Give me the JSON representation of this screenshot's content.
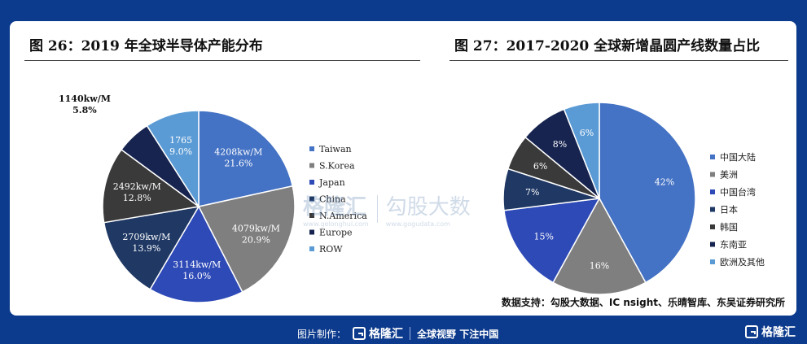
{
  "left_panel": {
    "title": "图 26：2019 年全球半导体产能分布"
  },
  "right_panel": {
    "title": "图 27：2017-2020 全球新增晶圆产线数量占比"
  },
  "source_note": "数据支持：勾股大数据、IC nsight、乐晴智库、东吴证券研究所",
  "watermark": {
    "brand": "格隆汇",
    "brand_sub": "www.gelonghui.com",
    "brand2": "勾股大数",
    "brand2_sub": "www.gogudata.com"
  },
  "footer": {
    "made_by": "图片制作：",
    "brand": "格隆汇",
    "slogan": "全球视野 下注中国",
    "right_brand": "格隆汇"
  },
  "chart_data": [
    {
      "type": "pie",
      "title": "图 26：2019 年全球半导体产能分布",
      "slices": [
        {
          "name": "Taiwan",
          "value": 4208,
          "label": "4208kw/M",
          "pct": "21.6%",
          "color": "#4472c4"
        },
        {
          "name": "S.Korea",
          "value": 4079,
          "label": "4079kw/M",
          "pct": "20.9%",
          "color": "#7f7f7f"
        },
        {
          "name": "Japan",
          "value": 3114,
          "label": "3114kw/M",
          "pct": "16.0%",
          "color": "#2e4ab6"
        },
        {
          "name": "China",
          "value": 2709,
          "label": "2709kw/M",
          "pct": "13.9%",
          "color": "#1f3864"
        },
        {
          "name": "N.America",
          "value": 2492,
          "label": "2492kw/M",
          "pct": "12.8%",
          "color": "#3a3a3a"
        },
        {
          "name": "Europe",
          "value": 1140,
          "label": "1140kw/M",
          "pct": "5.8%",
          "color": "#16244f"
        },
        {
          "name": "ROW",
          "value": 1765,
          "label": "1765",
          "pct": "9.0%",
          "color": "#5b9bd5"
        }
      ],
      "legend_position": "right"
    },
    {
      "type": "pie",
      "title": "图 27：2017-2020 全球新增晶圆产线数量占比",
      "slices": [
        {
          "name": "中国大陆",
          "value": 42,
          "label": "42%",
          "color": "#4472c4"
        },
        {
          "name": "美洲",
          "value": 16,
          "label": "16%",
          "color": "#7f7f7f"
        },
        {
          "name": "中国台湾",
          "value": 15,
          "label": "15%",
          "color": "#2e4ab6"
        },
        {
          "name": "日本",
          "value": 7,
          "label": "7%",
          "color": "#1f3864"
        },
        {
          "name": "韩国",
          "value": 6,
          "label": "6%",
          "color": "#3a3a3a"
        },
        {
          "name": "东南亚",
          "value": 8,
          "label": "8%",
          "color": "#16244f"
        },
        {
          "name": "欧洲及其他",
          "value": 6,
          "label": "6%",
          "color": "#5b9bd5"
        }
      ],
      "legend_position": "right"
    }
  ]
}
